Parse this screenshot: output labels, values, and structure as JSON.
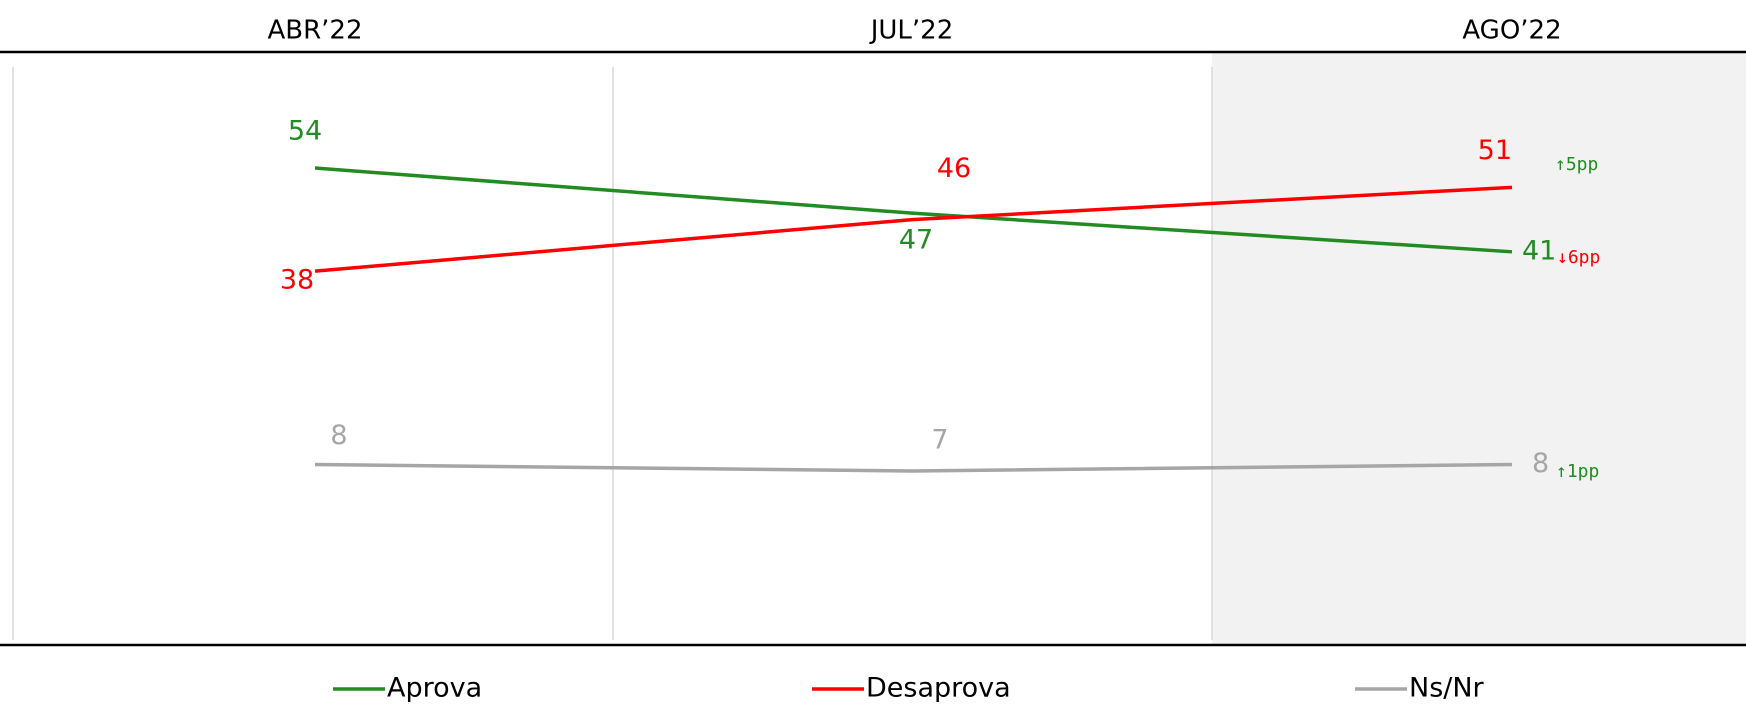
{
  "chart_data": {
    "type": "line",
    "categories": [
      "ABR’22",
      "JUL’22",
      "AGO’22"
    ],
    "series": [
      {
        "name": "Aprova",
        "color": "#228b22",
        "values": [
          54,
          47,
          41
        ]
      },
      {
        "name": "Desaprova",
        "color": "#ff0000",
        "values": [
          38,
          46,
          51
        ]
      },
      {
        "name": "Ns/Nr",
        "color": "#a6a6a6",
        "values": [
          8,
          7,
          8
        ]
      }
    ],
    "annotations": [
      {
        "text": "↓6pp",
        "color": "#ff0000"
      },
      {
        "text": "↑5pp",
        "color": "#228b22"
      },
      {
        "text": "↑1pp",
        "color": "#228b22"
      }
    ],
    "ylim": [
      -20,
      72
    ],
    "highlight_color": "#f2f2f2"
  }
}
